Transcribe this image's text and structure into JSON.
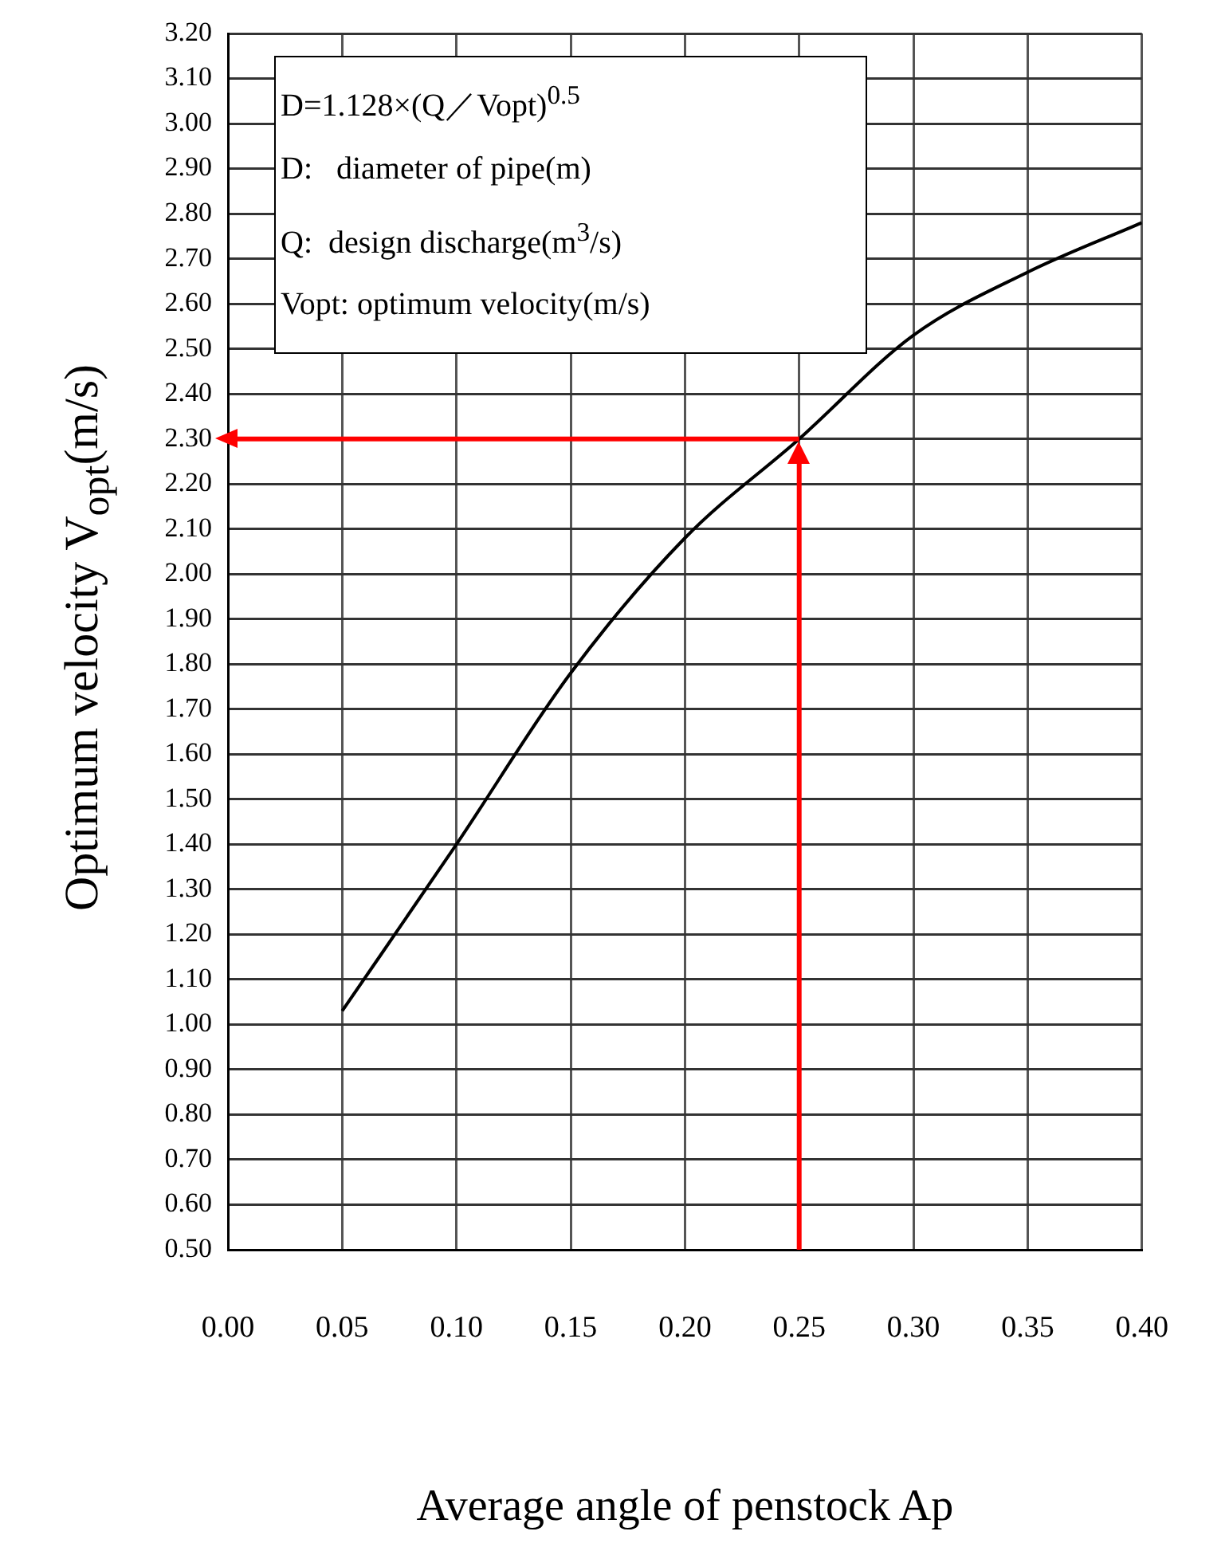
{
  "chart_data": {
    "type": "line",
    "xlabel": "Average angle of penstock Ap",
    "ylabel": "Optimum velocity  V$_{opt}$(m/s)",
    "x": [
      0.05,
      0.1,
      0.15,
      0.2,
      0.25,
      0.3,
      0.35,
      0.4
    ],
    "series": [
      {
        "color": "#000000",
        "values": [
          1.03,
          1.4,
          1.78,
          2.08,
          2.3,
          2.53,
          2.67,
          2.78
        ]
      }
    ],
    "xlim": [
      0,
      0.4
    ],
    "xticks": [
      {
        "value": 0,
        "label": "0.00"
      },
      {
        "value": 0.05,
        "label": "0.05"
      },
      {
        "value": 0.1,
        "label": "0.10"
      },
      {
        "value": 0.15,
        "label": "0.15"
      },
      {
        "value": 0.2,
        "label": "0.20"
      },
      {
        "value": 0.25,
        "label": "0.25"
      },
      {
        "value": 0.3,
        "label": "0.30"
      },
      {
        "value": 0.35,
        "label": "0.35"
      },
      {
        "value": 0.4,
        "label": "0.40"
      }
    ],
    "ylim": [
      0.5,
      3.2
    ],
    "yticks": [
      {
        "value": 0.5,
        "label": "0.50"
      },
      {
        "value": 0.6,
        "label": "0.60"
      },
      {
        "value": 0.7,
        "label": "0.70"
      },
      {
        "value": 0.8,
        "label": "0.80"
      },
      {
        "value": 0.9,
        "label": "0.90"
      },
      {
        "value": 1.0,
        "label": "1.00"
      },
      {
        "value": 1.1,
        "label": "1.10"
      },
      {
        "value": 1.2,
        "label": "1.20"
      },
      {
        "value": 1.3,
        "label": "1.30"
      },
      {
        "value": 1.4,
        "label": "1.40"
      },
      {
        "value": 1.5,
        "label": "1.50"
      },
      {
        "value": 1.6,
        "label": "1.60"
      },
      {
        "value": 1.7,
        "label": "1.70"
      },
      {
        "value": 1.8,
        "label": "1.80"
      },
      {
        "value": 1.9,
        "label": "1.90"
      },
      {
        "value": 2.0,
        "label": "2.00"
      },
      {
        "value": 2.1,
        "label": "2.10"
      },
      {
        "value": 2.2,
        "label": "2.20"
      },
      {
        "value": 2.3,
        "label": "2.30"
      },
      {
        "value": 2.4,
        "label": "2.40"
      },
      {
        "value": 2.5,
        "label": "2.50"
      },
      {
        "value": 2.6,
        "label": "2.60"
      },
      {
        "value": 2.7,
        "label": "2.70"
      },
      {
        "value": 2.8,
        "label": "2.80"
      },
      {
        "value": 2.9,
        "label": "2.90"
      },
      {
        "value": 3.0,
        "label": "3.00"
      },
      {
        "value": 3.1,
        "label": "3.10"
      },
      {
        "value": 3.2,
        "label": "3.20"
      }
    ],
    "grid": true,
    "marker": "none",
    "ref_lines": [
      {
        "axis": "x",
        "value": 0.25,
        "color": "#ff0000"
      },
      {
        "axis": "y",
        "value": 2.3,
        "color": "#ff0000"
      }
    ],
    "annotations": [
      "D=1.128×(Q／Vopt)$^{0.5}$",
      "D:   diameter of pipe(m)",
      "Q:  design discharge(m$^{3}$/s)",
      "Vopt: optimum velocity(m/s)"
    ]
  }
}
